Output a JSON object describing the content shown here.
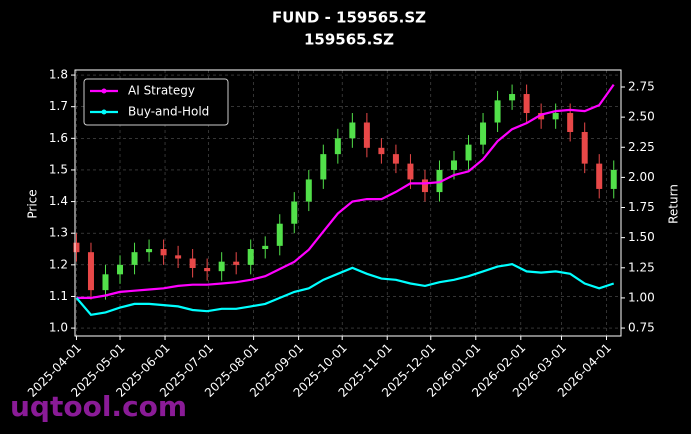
{
  "chart_data": {
    "type": "candlestick",
    "title": "FUND - 159565.SZ",
    "subtitle": "159565.SZ",
    "ylabel": "Price",
    "y2label": "Return",
    "watermark": "uqtool.com",
    "x": [
      "2025-04-01",
      "2025-04-11",
      "2025-04-21",
      "2025-05-01",
      "2025-05-11",
      "2025-05-21",
      "2025-05-31",
      "2025-06-10",
      "2025-06-20",
      "2025-06-30",
      "2025-07-10",
      "2025-07-20",
      "2025-07-30",
      "2025-08-09",
      "2025-08-19",
      "2025-08-29",
      "2025-09-08",
      "2025-09-18",
      "2025-09-28",
      "2025-10-08",
      "2025-10-18",
      "2025-10-28",
      "2025-11-07",
      "2025-11-17",
      "2025-11-27",
      "2025-12-07",
      "2025-12-17",
      "2025-12-27",
      "2026-01-06",
      "2026-01-16",
      "2026-01-26",
      "2026-02-05",
      "2026-02-15",
      "2026-02-25",
      "2026-03-07",
      "2026-03-17",
      "2026-03-27",
      "2026-04-06"
    ],
    "open": [
      1.27,
      1.24,
      1.12,
      1.17,
      1.2,
      1.24,
      1.25,
      1.23,
      1.22,
      1.19,
      1.18,
      1.21,
      1.2,
      1.25,
      1.26,
      1.33,
      1.4,
      1.47,
      1.55,
      1.6,
      1.65,
      1.57,
      1.55,
      1.52,
      1.47,
      1.43,
      1.5,
      1.53,
      1.58,
      1.65,
      1.72,
      1.74,
      1.68,
      1.66,
      1.68,
      1.62,
      1.52,
      1.44
    ],
    "high": [
      1.3,
      1.27,
      1.2,
      1.23,
      1.27,
      1.28,
      1.28,
      1.26,
      1.25,
      1.22,
      1.24,
      1.24,
      1.28,
      1.29,
      1.36,
      1.43,
      1.5,
      1.58,
      1.63,
      1.68,
      1.68,
      1.6,
      1.58,
      1.55,
      1.5,
      1.53,
      1.56,
      1.61,
      1.68,
      1.75,
      1.77,
      1.77,
      1.71,
      1.71,
      1.71,
      1.65,
      1.55,
      1.53
    ],
    "low": [
      1.21,
      1.09,
      1.09,
      1.14,
      1.17,
      1.21,
      1.2,
      1.19,
      1.16,
      1.15,
      1.15,
      1.17,
      1.17,
      1.22,
      1.23,
      1.3,
      1.37,
      1.44,
      1.52,
      1.57,
      1.54,
      1.52,
      1.49,
      1.44,
      1.4,
      1.4,
      1.47,
      1.5,
      1.55,
      1.62,
      1.69,
      1.65,
      1.63,
      1.63,
      1.59,
      1.49,
      1.41,
      1.41
    ],
    "close": [
      1.24,
      1.12,
      1.17,
      1.2,
      1.24,
      1.25,
      1.23,
      1.22,
      1.19,
      1.18,
      1.21,
      1.2,
      1.25,
      1.26,
      1.33,
      1.4,
      1.47,
      1.55,
      1.6,
      1.65,
      1.57,
      1.55,
      1.52,
      1.47,
      1.43,
      1.5,
      1.53,
      1.58,
      1.65,
      1.72,
      1.74,
      1.68,
      1.66,
      1.68,
      1.62,
      1.52,
      1.44,
      1.5
    ],
    "up_color": "#52e04a",
    "down_color": "#e84848",
    "series": [
      {
        "name": "AI Strategy",
        "color": "#ff00ff",
        "axis": "y2",
        "values": [
          1.0,
          1.0,
          1.02,
          1.05,
          1.06,
          1.07,
          1.08,
          1.1,
          1.11,
          1.11,
          1.12,
          1.13,
          1.15,
          1.18,
          1.24,
          1.3,
          1.4,
          1.55,
          1.7,
          1.8,
          1.82,
          1.82,
          1.88,
          1.95,
          1.95,
          1.96,
          2.02,
          2.05,
          2.15,
          2.3,
          2.4,
          2.45,
          2.52,
          2.55,
          2.56,
          2.55,
          2.6,
          2.77
        ]
      },
      {
        "name": "Buy-and-Hold",
        "color": "#00ffff",
        "axis": "y2",
        "values": [
          1.0,
          0.86,
          0.88,
          0.92,
          0.95,
          0.95,
          0.94,
          0.93,
          0.9,
          0.89,
          0.91,
          0.91,
          0.93,
          0.95,
          1.0,
          1.05,
          1.08,
          1.15,
          1.2,
          1.25,
          1.2,
          1.16,
          1.15,
          1.12,
          1.1,
          1.13,
          1.15,
          1.18,
          1.22,
          1.26,
          1.28,
          1.22,
          1.21,
          1.22,
          1.2,
          1.12,
          1.08,
          1.12
        ]
      }
    ],
    "xlim": [
      "2025-03-31",
      "2026-04-11"
    ],
    "xticks": [
      "2025-04-01",
      "2025-05-01",
      "2025-06-01",
      "2025-07-01",
      "2025-08-01",
      "2025-09-01",
      "2025-10-01",
      "2025-11-01",
      "2025-12-01",
      "2026-01-01",
      "2026-02-01",
      "2026-03-01",
      "2026-04-01"
    ],
    "ylim": [
      0.975,
      1.816
    ],
    "yticks": [
      {
        "value": 1,
        "label": "1.0"
      },
      1.1,
      1.2,
      1.3,
      1.4,
      1.5,
      1.6,
      1.7,
      1.8
    ],
    "y2lim": [
      0.684,
      2.891
    ],
    "y2ticks": [
      0.75,
      {
        "value": 1,
        "label": "1.00"
      },
      1.25,
      {
        "value": 1.5,
        "label": "1.50"
      },
      1.75,
      {
        "value": 2,
        "label": "2.00"
      },
      2.25,
      {
        "value": 2.5,
        "label": "2.50"
      },
      2.75
    ],
    "grid": true,
    "legend": "upper left"
  }
}
